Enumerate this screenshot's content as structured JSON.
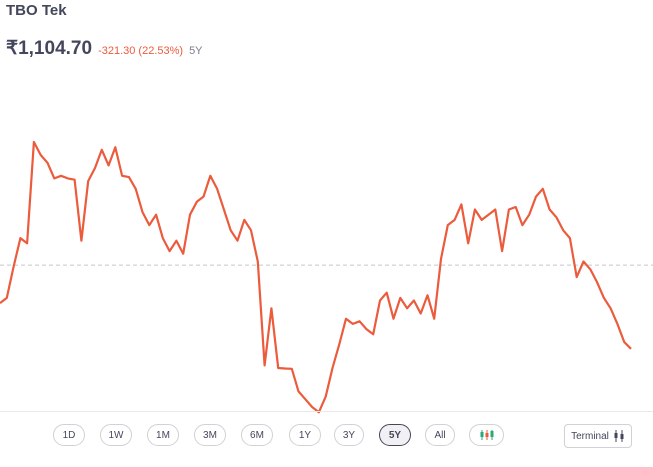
{
  "stock": {
    "name": "TBO Tek",
    "price": "₹1,104.70",
    "change": "-321.30 (22.53%)",
    "period": "5Y"
  },
  "colors": {
    "line": "#eb5b3c",
    "baseline": "#c8c8cc"
  },
  "range_buttons": [
    {
      "label": "1D",
      "active": false
    },
    {
      "label": "1W",
      "active": false
    },
    {
      "label": "1M",
      "active": false
    },
    {
      "label": "3M",
      "active": false
    },
    {
      "label": "6M",
      "active": false
    },
    {
      "label": "1Y",
      "active": false
    },
    {
      "label": "3Y",
      "active": false
    },
    {
      "label": "5Y",
      "active": true
    },
    {
      "label": "All",
      "active": false
    }
  ],
  "toolbar": {
    "candlestick_icon": "candlestick-chart-icon",
    "terminal_label": "Terminal",
    "terminal_icon": "candlestick-icon"
  },
  "chart_data": {
    "type": "line",
    "baseline_value": 1426,
    "values": [
      1280,
      1300,
      1420,
      1530,
      1510,
      1900,
      1850,
      1820,
      1760,
      1770,
      1760,
      1755,
      1520,
      1750,
      1800,
      1870,
      1810,
      1880,
      1770,
      1765,
      1720,
      1630,
      1580,
      1620,
      1530,
      1480,
      1520,
      1470,
      1620,
      1670,
      1690,
      1770,
      1720,
      1640,
      1560,
      1520,
      1600,
      1560,
      1440,
      1040,
      1260,
      1030,
      1028,
      1027,
      940,
      910,
      880,
      860,
      920,
      1030,
      1120,
      1220,
      1200,
      1210,
      1180,
      1160,
      1290,
      1320,
      1220,
      1300,
      1260,
      1290,
      1240,
      1310,
      1220,
      1450,
      1580,
      1600,
      1660,
      1510,
      1640,
      1600,
      1620,
      1640,
      1480,
      1640,
      1650,
      1580,
      1620,
      1690,
      1720,
      1640,
      1610,
      1560,
      1530,
      1380,
      1440,
      1410,
      1360,
      1300,
      1260,
      1200,
      1130,
      1104
    ]
  }
}
